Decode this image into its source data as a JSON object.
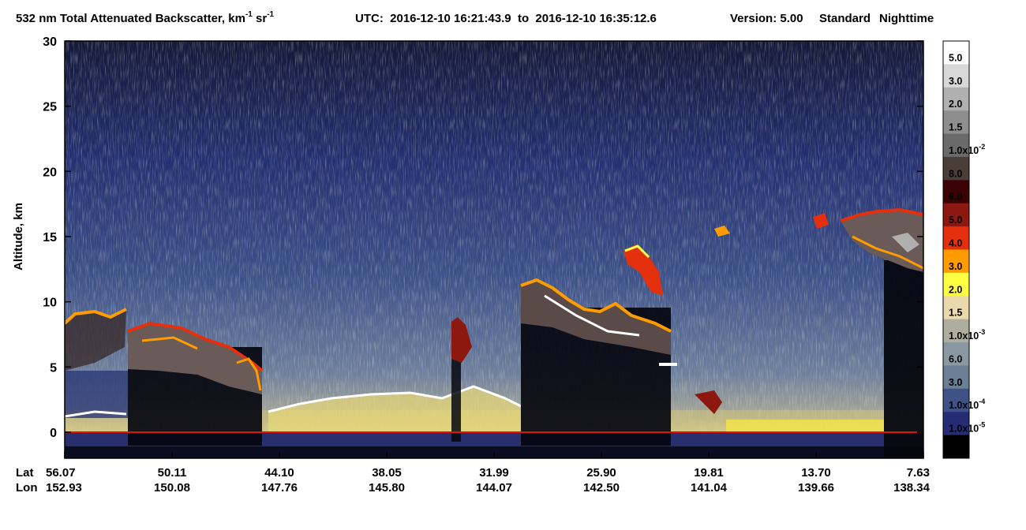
{
  "chart_data": {
    "type": "heatmap",
    "title_parts": [
      "532 nm Total Attenuated Backscatter, km",
      "-1",
      " sr",
      "-1"
    ],
    "utc": "UTC:  2016-12-10 16:21:43.9  to  2016-12-10 16:35:12.6",
    "version": "Version: 5.00",
    "product": "Standard",
    "mode": "Nighttime",
    "y_label": "Altitude, km",
    "ylim": [
      -2,
      30
    ],
    "yticks": [
      0,
      5,
      10,
      15,
      20,
      25,
      30
    ],
    "lat_label": "Lat",
    "lon_label": "Lon",
    "lat": [
      "56.07",
      "50.11",
      "44.10",
      "38.05",
      "31.99",
      "25.90",
      "19.81",
      "13.70",
      "7.63"
    ],
    "lon": [
      "152.93",
      "150.08",
      "147.76",
      "145.80",
      "144.07",
      "142.50",
      "141.04",
      "139.66",
      "138.34"
    ],
    "colorbar": {
      "colors": [
        "#ffffff",
        "#d8d8d8",
        "#b0b0b0",
        "#8e8e8e",
        "#6a6a6a",
        "#4a3e3a",
        "#3a0404",
        "#8c1810",
        "#e4300c",
        "#ff9c00",
        "#ffff44",
        "#ead9ac",
        "#aeae9e",
        "#8a98a2",
        "#6a7e94",
        "#3e5286",
        "#262c74",
        "#000000"
      ],
      "labels": [
        {
          "text": "5.0"
        },
        {
          "text": "3.0"
        },
        {
          "text": "2.0"
        },
        {
          "text": "1.5"
        },
        {
          "text": "1.0x10",
          "sup": "-2"
        },
        {
          "text": "8.0"
        },
        {
          "text": "6.0"
        },
        {
          "text": "5.0"
        },
        {
          "text": "4.0"
        },
        {
          "text": "3.0"
        },
        {
          "text": "2.0"
        },
        {
          "text": "1.5"
        },
        {
          "text": "1.0x10",
          "sup": "-3"
        },
        {
          "text": "6.0"
        },
        {
          "text": "3.0"
        },
        {
          "text": "1.0x10",
          "sup": "-4"
        },
        {
          "text": "1.0x10",
          "sup": "-5"
        }
      ]
    }
  }
}
